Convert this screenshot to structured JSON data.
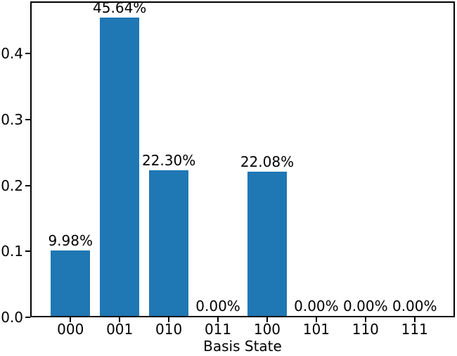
{
  "chart_data": {
    "type": "bar",
    "title": "",
    "xlabel": "Basis State",
    "ylabel": "",
    "categories": [
      "000",
      "001",
      "010",
      "011",
      "100",
      "101",
      "110",
      "111"
    ],
    "values": [
      0.0998,
      0.4564,
      0.223,
      0.0,
      0.2208,
      0.0,
      0.0,
      0.0
    ],
    "bar_labels": [
      "9.98%",
      "45.64%",
      "22.30%",
      "0.00%",
      "22.08%",
      "0.00%",
      "0.00%",
      "0.00%"
    ],
    "bar_color": "#1f77b4",
    "bar_width": 0.8,
    "xlim": [
      -0.79,
      7.79
    ],
    "ylim": [
      0,
      0.4792
    ],
    "yticks": [
      0.0,
      0.1,
      0.2,
      0.3,
      0.4
    ],
    "ytick_labels": [
      "0.0",
      "0.1",
      "0.2",
      "0.3",
      "0.4"
    ],
    "grid": false,
    "legend_position": "none"
  }
}
